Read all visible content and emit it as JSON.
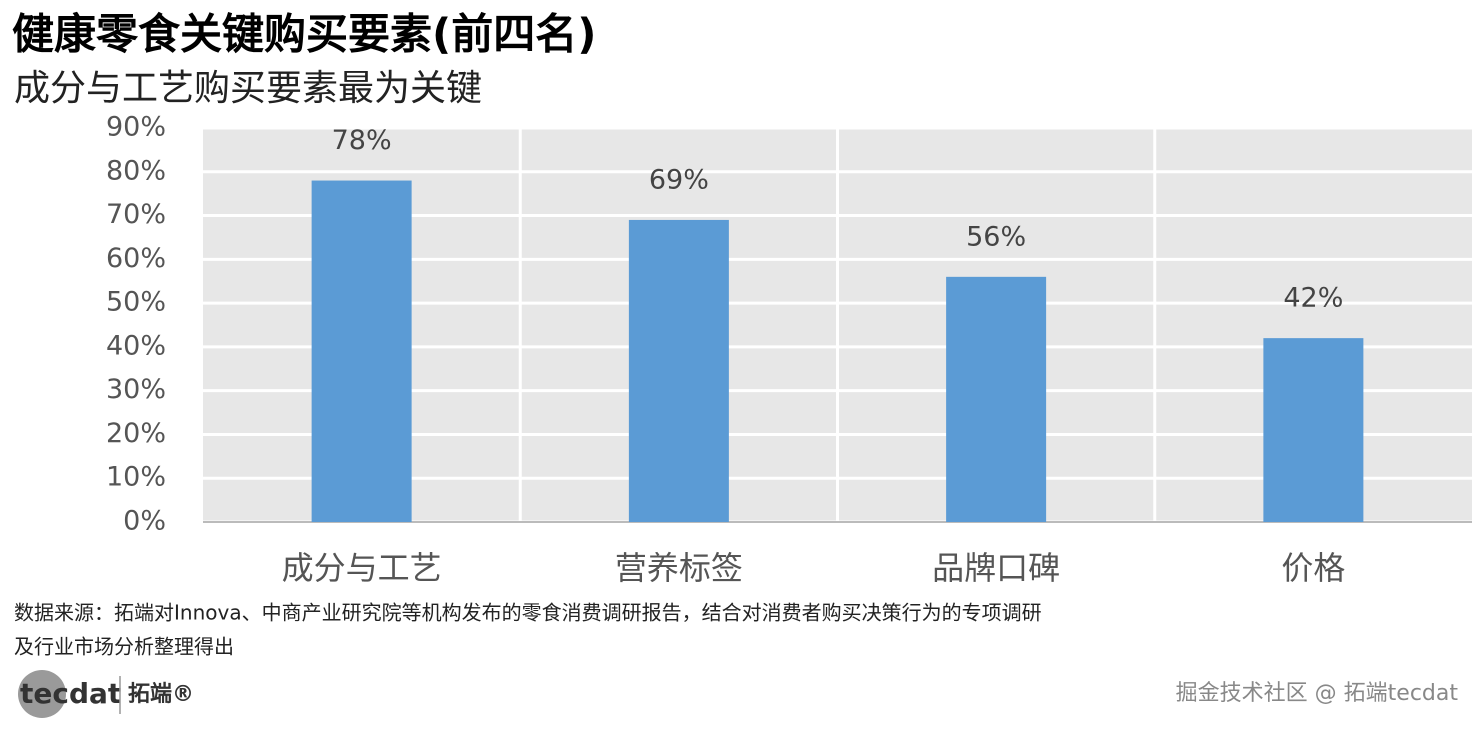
{
  "chart_data": {
    "type": "bar",
    "title": "健康零食关键购买要素(前四名)",
    "subtitle": "成分与工艺购买要素最为关键",
    "categories": [
      "成分与工艺",
      "营养标签",
      "品牌口碑",
      "价格"
    ],
    "values": [
      78,
      69,
      56,
      42
    ],
    "value_labels": [
      "78%",
      "69%",
      "56%",
      "42%"
    ],
    "color": "#5b9bd5",
    "ylim": [
      0,
      90
    ],
    "yticks": [
      {
        "value": 0,
        "label": "0%"
      },
      {
        "value": 10,
        "label": "10%"
      },
      {
        "value": 20,
        "label": "20%"
      },
      {
        "value": 30,
        "label": "30%"
      },
      {
        "value": 40,
        "label": "40%"
      },
      {
        "value": 50,
        "label": "50%"
      },
      {
        "value": 60,
        "label": "60%"
      },
      {
        "value": 70,
        "label": "70%"
      },
      {
        "value": 80,
        "label": "80%"
      },
      {
        "value": 90,
        "label": "90%"
      }
    ],
    "grid": true
  },
  "source": [
    "数据来源：拓端对Innova、中商产业研究院等机构发布的零食消费调研报告，结合对消费者购买决策行为的专项调研",
    "及行业市场分析整理得出"
  ],
  "logo": {
    "brand": "tecdat",
    "name": "拓端®"
  },
  "watermark": "掘金技术社区 @ 拓端tecdat"
}
